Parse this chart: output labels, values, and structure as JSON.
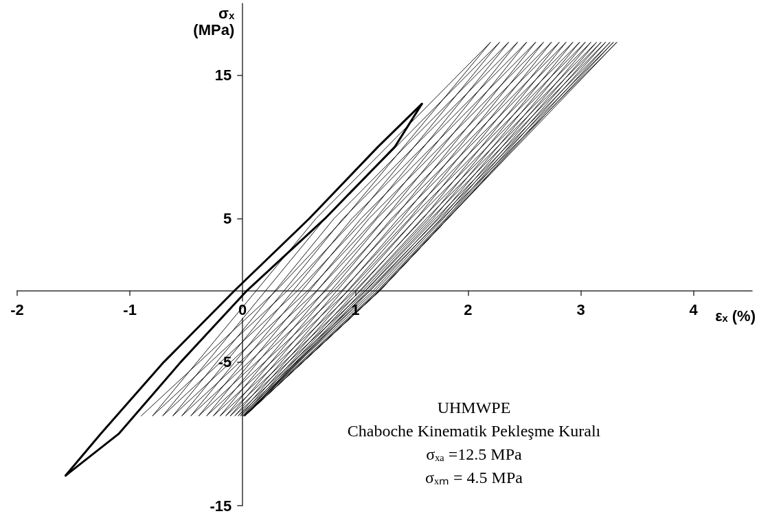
{
  "chart_data": {
    "type": "line",
    "xlabel": "εₓ (%)",
    "ylabel": "σₓ (MPa)",
    "xlim": [
      -2,
      4.52
    ],
    "xticks": [
      -2,
      -1,
      0,
      1,
      2,
      3,
      4
    ],
    "ylim": [
      -15,
      20
    ],
    "yticks": [
      -15,
      -5,
      5,
      15
    ],
    "grid": false,
    "marker": "none",
    "line_style": "solid",
    "annotations": [
      "UHMWPE",
      "Chaboche Kinematik Pekleşme Kuralı",
      "σₓₐ =12.5 MPa",
      "σₓₘ = 4.5 MPa"
    ],
    "series": [
      {
        "color": "#000000",
        "x": [
          -0.9,
          0.3,
          0.9,
          2.2,
          0.65,
          -0.8,
          0.4,
          1.0,
          2.28,
          0.73,
          -0.71,
          0.49,
          1.09,
          2.36,
          0.81,
          -0.62,
          0.58,
          1.18,
          2.44,
          0.89,
          -0.54,
          0.66,
          1.26,
          2.52,
          0.97,
          -0.46,
          0.74,
          1.34,
          2.6,
          1.05,
          -0.39,
          0.81,
          1.41,
          2.67,
          1.12,
          -0.32,
          0.88,
          1.48,
          2.74,
          1.19,
          -0.26,
          0.94,
          1.54,
          2.81,
          1.26,
          -0.2,
          1.0,
          1.6,
          2.87,
          1.32,
          -0.15,
          1.05,
          1.65,
          2.93,
          1.38,
          -0.11,
          1.09,
          1.69,
          2.99,
          1.44,
          -0.07,
          1.13,
          1.73,
          3.04,
          1.49,
          -0.04,
          1.16,
          1.76,
          3.09,
          1.54,
          -0.02,
          1.18,
          1.78,
          3.14,
          1.59,
          0,
          1.2,
          1.8,
          3.18,
          1.63,
          0.01,
          1.21,
          1.81,
          3.22,
          1.67,
          0.02,
          1.22,
          1.82,
          3.26,
          1.71,
          0.02,
          1.22,
          1.82,
          3.29,
          1.74,
          0.02,
          1.22,
          1.82,
          3.32,
          1.77,
          0.02
        ],
        "values": [
          -8.75,
          0,
          5,
          17.3,
          5,
          -8.75,
          0,
          5,
          17.3,
          5,
          -8.75,
          0,
          5,
          17.3,
          5,
          -8.75,
          0,
          5,
          17.3,
          5,
          -8.75,
          0,
          5,
          17.3,
          5,
          -8.75,
          0,
          5,
          17.3,
          5,
          -8.75,
          0,
          5,
          17.3,
          5,
          -8.75,
          0,
          5,
          17.3,
          5,
          -8.75,
          0,
          5,
          17.3,
          5,
          -8.75,
          0,
          5,
          17.3,
          5,
          -8.75,
          0,
          5,
          17.3,
          5,
          -8.75,
          0,
          5,
          17.3,
          5,
          -8.75,
          0,
          5,
          17.3,
          5,
          -8.75,
          0,
          5,
          17.3,
          5,
          -8.75,
          0,
          5,
          17.3,
          5,
          -8.75,
          0,
          5,
          17.3,
          5,
          -8.75,
          0,
          5,
          17.3,
          5,
          -8.75,
          0,
          5,
          17.3,
          5,
          -8.75,
          0,
          5,
          17.3,
          5,
          -8.75,
          0,
          5,
          17.3,
          5,
          -8.75
        ]
      },
      {
        "color": "#000000",
        "x": [
          1.59,
          1.2,
          0.59,
          -0.07,
          -0.7,
          -1.26,
          -1.57
        ],
        "values": [
          13,
          10,
          5,
          0,
          -5,
          -10,
          -12.9
        ]
      },
      {
        "color": "#000000",
        "x": [
          -1.57,
          -1.1,
          -0.55,
          0.04,
          0.73,
          1.35,
          1.59
        ],
        "values": [
          -12.9,
          -10,
          -5,
          0,
          5,
          10,
          13
        ]
      }
    ]
  }
}
